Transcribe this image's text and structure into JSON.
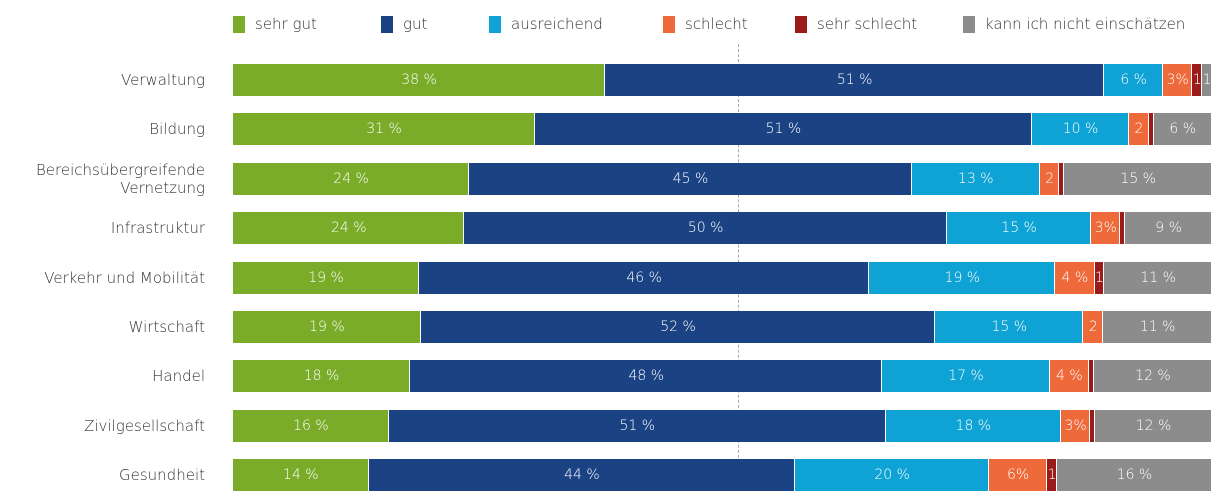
{
  "chart_data": {
    "type": "stacked_bar_100",
    "categories": [
      "Verwaltung",
      "Bildung",
      "Bereichsübergreifende Vernetzung",
      "Infrastruktur",
      "Verkehr und Mobilität",
      "Wirtschaft",
      "Handel",
      "Zivilgesellschaft",
      "Gesundheit"
    ],
    "series": [
      {
        "name": "sehr gut",
        "color": "#7aac2a",
        "values": [
          38,
          31,
          24,
          24,
          19,
          19,
          18,
          16,
          14
        ],
        "value_labels": [
          "38 %",
          "31 %",
          "24 %",
          "24 %",
          "19 %",
          "19 %",
          "18 %",
          "16 %",
          "14 %"
        ]
      },
      {
        "name": "gut",
        "color": "#1b4384",
        "values": [
          51,
          51,
          45,
          50,
          46,
          52,
          48,
          51,
          44
        ],
        "value_labels": [
          "51 %",
          "51 %",
          "45 %",
          "50 %",
          "46 %",
          "52 %",
          "48 %",
          "51 %",
          "44 %"
        ]
      },
      {
        "name": "ausreichend",
        "color": "#0ea3d4",
        "values": [
          6,
          10,
          13,
          15,
          19,
          15,
          17,
          18,
          20
        ],
        "value_labels": [
          "6 %",
          "10 %",
          "13 %",
          "15 %",
          "19 %",
          "15 %",
          "17 %",
          "18 %",
          "20 %"
        ]
      },
      {
        "name": "schlecht",
        "color": "#ee6a3a",
        "values": [
          3,
          2,
          2,
          3,
          4,
          2,
          4,
          3,
          6
        ],
        "value_labels": [
          "3%",
          "2",
          "2",
          "3%",
          "4 %",
          "2",
          "4 %",
          "3%",
          "6%"
        ]
      },
      {
        "name": "sehr schlecht",
        "color": "#9b1b1b",
        "values": [
          1,
          0.5,
          0.5,
          0.5,
          1,
          0,
          0.5,
          0.5,
          1
        ],
        "value_labels": [
          "1",
          null,
          null,
          null,
          "1",
          null,
          null,
          null,
          "1"
        ]
      },
      {
        "name": "kann ich nicht einschätzen",
        "color": "#8c8c8c",
        "values": [
          1,
          6,
          15,
          9,
          11,
          11,
          12,
          12,
          16
        ],
        "value_labels": [
          "1",
          "6 %",
          "15 %",
          "9 %",
          "11 %",
          "11 %",
          "12 %",
          "12 %",
          "16 %"
        ]
      }
    ]
  }
}
